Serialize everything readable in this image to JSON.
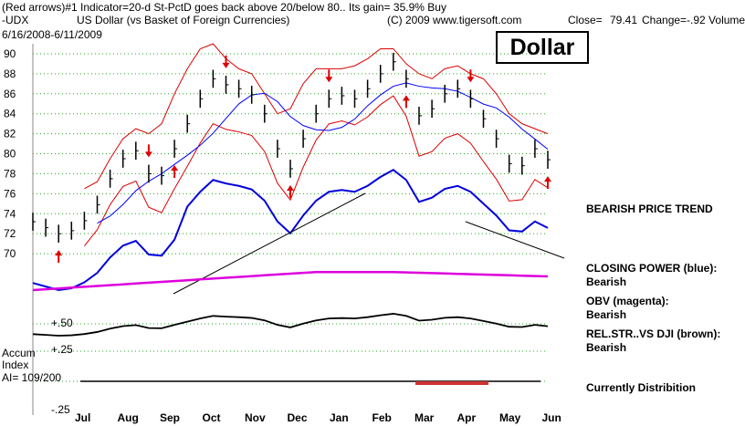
{
  "header": {
    "line1_left": "(Red arrows)#1 Indicator=20-d St-PctD goes back above 20/below 80.. Its gain= 35.9% Buy",
    "line2_ticker": "-UDX",
    "line2_name": "US Dollar (vs Basket of Foreign Currencies)",
    "line2_copyright": "(C) 2009 www.tigersoft.com",
    "line2_close": "Close=",
    "line2_close_value": "79.41",
    "line2_change": "Change=-.92 Volume",
    "date_range": "6/16/2008-6/11/2009"
  },
  "title_box": "Dollar",
  "right_panel": {
    "trend": "BEARISH PRICE TREND",
    "closing_power_label": "CLOSING POWER (blue):",
    "closing_power_value": "Bearish",
    "obv_label": "OBV (magenta):",
    "obv_value": "Bearish",
    "relstr_label": "REL.STR..VS DJI (brown):",
    "relstr_value": "Bearish",
    "distribution": "Currently Distribition"
  },
  "accum": {
    "label1": "Accum",
    "label2": "Index",
    "value": "AI= 109/200",
    "tick_plus50": "+.50",
    "tick_plus25": "+.25",
    "tick_minus25": "-.25"
  },
  "colors": {
    "price": "#000000",
    "upper_band": "#dd0000",
    "closing_power": "#0000dd",
    "ma_blue": "#0000ff",
    "obv": "#dd00dd",
    "relstr": "#000000",
    "grid": "#22aa22",
    "arrow": "#dd0000",
    "accum_neg": "#cc3333"
  },
  "chart_data": {
    "type": "line",
    "title": "Dollar",
    "ylim": [
      68,
      91
    ],
    "y_ticks": [
      70,
      72,
      74,
      76,
      78,
      80,
      82,
      84,
      86,
      88,
      90
    ],
    "x_labels": [
      "Jul",
      "Aug",
      "Sep",
      "Oct",
      "Nov",
      "Dec",
      "Jan",
      "Feb",
      "Mar",
      "Apr",
      "May",
      "Jun"
    ],
    "close": [
      73.2,
      72.6,
      72.0,
      72.3,
      73.3,
      74.9,
      77.5,
      79.5,
      80.3,
      78.0,
      77.8,
      80.5,
      83.0,
      85.5,
      87.5,
      86.9,
      86.5,
      85.9,
      84.0,
      80.5,
      78.5,
      81.5,
      84.0,
      85.5,
      85.8,
      85.5,
      86.5,
      88.0,
      89.2,
      87.5,
      83.8,
      84.5,
      86.0,
      86.5,
      85.5,
      83.5,
      81.5,
      79.0,
      78.8,
      80.5,
      79.4
    ],
    "upper_band": [
      null,
      null,
      null,
      null,
      76.5,
      77.2,
      79.5,
      81.5,
      82.5,
      82.0,
      83.0,
      86.0,
      88.5,
      90.5,
      91.0,
      89.5,
      88.5,
      88.0,
      86.0,
      84.0,
      84.5,
      87.0,
      88.5,
      88.5,
      88.5,
      88.8,
      89.5,
      90.5,
      90.5,
      89.0,
      88.0,
      87.5,
      88.5,
      88.8,
      88.0,
      87.5,
      86.0,
      84.0,
      83.0,
      82.5,
      82.0
    ],
    "lower_band": [
      null,
      null,
      null,
      null,
      null,
      null,
      null,
      null,
      null,
      null,
      null,
      null,
      null,
      null,
      null,
      null,
      null,
      null,
      null,
      null,
      null,
      null,
      null,
      null,
      null,
      null,
      null,
      null,
      null,
      null,
      null,
      null,
      null,
      null,
      null,
      null,
      null,
      null,
      null,
      null,
      null
    ],
    "arrows_up": [
      2,
      11,
      20,
      29,
      40
    ],
    "arrows_down": [
      9,
      15,
      23,
      34
    ],
    "closing_power": [
      null,
      null,
      null,
      null,
      null,
      null,
      null,
      null,
      null,
      null,
      null,
      null,
      null,
      null,
      null,
      null,
      null,
      null,
      null,
      null,
      null,
      null,
      null,
      null,
      null,
      null,
      null,
      null,
      null,
      null,
      null,
      null,
      null,
      null,
      null,
      null,
      null,
      null,
      null,
      null,
      null
    ]
  }
}
